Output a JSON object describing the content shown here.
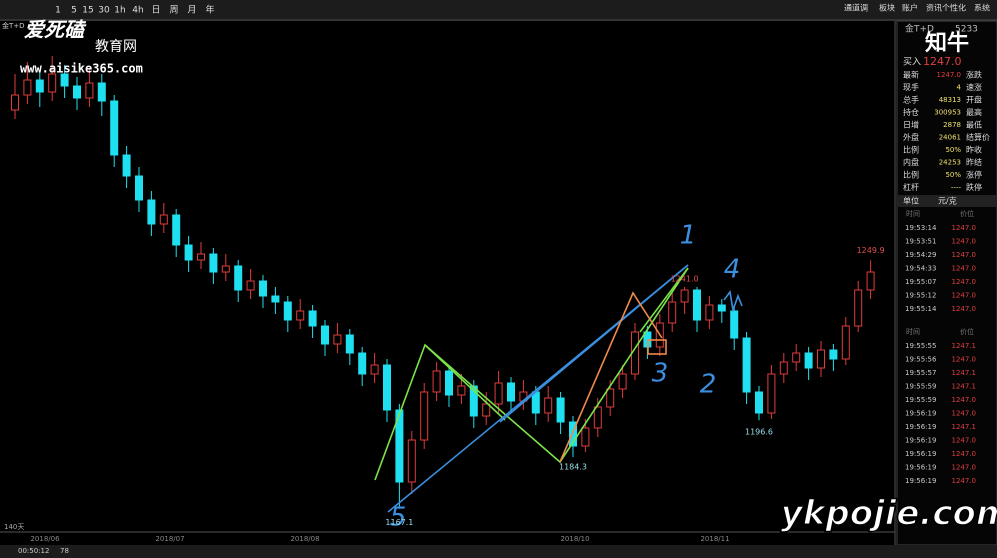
{
  "toolbar": {
    "periods": [
      "1",
      "5",
      "15",
      "30",
      "1h",
      "4h",
      "日",
      "周",
      "月",
      "年"
    ],
    "menu": [
      "通道调",
      "板块",
      "账户",
      "资讯",
      "个性化",
      "系统"
    ]
  },
  "watermark": {
    "brand": "爱死磕",
    "sub": "教育网",
    "url": "www.aisike365.com",
    "logo": "知牛",
    "corner": "ykpojie.com"
  },
  "chart": {
    "type": "candlestick",
    "symbol": "金T+D",
    "ylim": [
      1160,
      1330
    ],
    "candles": [
      [
        1300,
        1305,
        1312,
        1297
      ],
      [
        1305,
        1310,
        1316,
        1302
      ],
      [
        1310,
        1306,
        1313,
        1301
      ],
      [
        1306,
        1312,
        1318,
        1303
      ],
      [
        1312,
        1308,
        1315,
        1304
      ],
      [
        1308,
        1304,
        1311,
        1300
      ],
      [
        1304,
        1309,
        1314,
        1301
      ],
      [
        1309,
        1303,
        1312,
        1298
      ],
      [
        1303,
        1285,
        1305,
        1281
      ],
      [
        1285,
        1278,
        1288,
        1274
      ],
      [
        1278,
        1270,
        1281,
        1266
      ],
      [
        1270,
        1262,
        1273,
        1258
      ],
      [
        1262,
        1265,
        1269,
        1259
      ],
      [
        1265,
        1255,
        1267,
        1251
      ],
      [
        1255,
        1250,
        1258,
        1246
      ],
      [
        1250,
        1252,
        1256,
        1247
      ],
      [
        1252,
        1246,
        1254,
        1242
      ],
      [
        1246,
        1248,
        1252,
        1243
      ],
      [
        1248,
        1240,
        1250,
        1236
      ],
      [
        1240,
        1243,
        1247,
        1237
      ],
      [
        1243,
        1238,
        1245,
        1234
      ],
      [
        1238,
        1236,
        1241,
        1232
      ],
      [
        1236,
        1230,
        1238,
        1226
      ],
      [
        1230,
        1233,
        1237,
        1227
      ],
      [
        1233,
        1228,
        1235,
        1224
      ],
      [
        1228,
        1222,
        1230,
        1218
      ],
      [
        1222,
        1225,
        1229,
        1219
      ],
      [
        1225,
        1219,
        1227,
        1215
      ],
      [
        1219,
        1212,
        1221,
        1208
      ],
      [
        1212,
        1215,
        1219,
        1209
      ],
      [
        1215,
        1200,
        1217,
        1196
      ],
      [
        1200,
        1176,
        1202,
        1167.1
      ],
      [
        1176,
        1190,
        1193,
        1172
      ],
      [
        1190,
        1206,
        1209,
        1187
      ],
      [
        1206,
        1213,
        1216,
        1203
      ],
      [
        1213,
        1205,
        1215,
        1201
      ],
      [
        1205,
        1208,
        1212,
        1202
      ],
      [
        1208,
        1198,
        1210,
        1194
      ],
      [
        1198,
        1202,
        1206,
        1195
      ],
      [
        1202,
        1209,
        1213,
        1199
      ],
      [
        1209,
        1203,
        1211,
        1199
      ],
      [
        1203,
        1206,
        1210,
        1200
      ],
      [
        1206,
        1199,
        1208,
        1195
      ],
      [
        1199,
        1204,
        1208,
        1196
      ],
      [
        1204,
        1196,
        1206,
        1192
      ],
      [
        1196,
        1188,
        1198,
        1184.3
      ],
      [
        1188,
        1194,
        1197,
        1186
      ],
      [
        1194,
        1201,
        1204,
        1191
      ],
      [
        1201,
        1207,
        1210,
        1198
      ],
      [
        1207,
        1212,
        1215,
        1204
      ],
      [
        1212,
        1226,
        1229,
        1210
      ],
      [
        1226,
        1221,
        1228,
        1217
      ],
      [
        1221,
        1229,
        1232,
        1218
      ],
      [
        1229,
        1236,
        1239,
        1226
      ],
      [
        1236,
        1240,
        1241,
        1232
      ],
      [
        1240,
        1230,
        1241,
        1226
      ],
      [
        1230,
        1235,
        1238,
        1227
      ],
      [
        1235,
        1233,
        1237,
        1229
      ],
      [
        1233,
        1224,
        1235,
        1220
      ],
      [
        1224,
        1206,
        1226,
        1202
      ],
      [
        1206,
        1199,
        1208,
        1196.6
      ],
      [
        1199,
        1212,
        1215,
        1197
      ],
      [
        1212,
        1216,
        1219,
        1209
      ],
      [
        1216,
        1219,
        1222,
        1213
      ],
      [
        1219,
        1214,
        1221,
        1210
      ],
      [
        1214,
        1220,
        1223,
        1211
      ],
      [
        1220,
        1217,
        1222,
        1213
      ],
      [
        1217,
        1228,
        1231,
        1215
      ],
      [
        1228,
        1240,
        1243,
        1226
      ],
      [
        1240,
        1246,
        1249.9,
        1237
      ]
    ],
    "annotations": [
      "1167.1",
      "1184.3",
      "1196.6",
      "1241.0",
      "1249.9"
    ],
    "dates": [
      "2018/06",
      "2018/07",
      "2018/08",
      "2018/10",
      "2018/11"
    ],
    "span": "140天",
    "hand_marks": [
      "1",
      "2",
      "3",
      "4",
      "5"
    ]
  },
  "panel": {
    "symbol": "金T+D",
    "code": "5233",
    "buy_label": "买入",
    "buy_price": "1247.0",
    "quote_rows": [
      [
        "最新",
        "1247.0",
        "涨跌"
      ],
      [
        "现手",
        "4",
        "速涨"
      ],
      [
        "总手",
        "48313",
        "开盘"
      ],
      [
        "持仓",
        "300953",
        "最高"
      ],
      [
        "日增",
        "2878",
        "最低"
      ],
      [
        "外盘",
        "24061",
        "结算价"
      ],
      [
        "比例",
        "50%",
        "昨收"
      ],
      [
        "内盘",
        "24253",
        "昨结"
      ],
      [
        "比例",
        "50%",
        "涨停"
      ],
      [
        "杠杆",
        "----",
        "跌停"
      ]
    ],
    "unit_label": "单位",
    "unit": "元/克",
    "ticks_header": [
      "时间",
      "价位"
    ],
    "ticks_a": [
      [
        "19:53:14",
        "1247.0"
      ],
      [
        "19:53:51",
        "1247.0"
      ],
      [
        "19:54:29",
        "1247.0"
      ],
      [
        "19:54:33",
        "1247.0"
      ],
      [
        "19:55:07",
        "1247.0"
      ],
      [
        "19:55:12",
        "1247.0"
      ],
      [
        "19:55:14",
        "1247.0"
      ]
    ],
    "ticks_b": [
      [
        "19:55:55",
        "1247.1"
      ],
      [
        "19:55:56",
        "1247.0"
      ],
      [
        "19:55:57",
        "1247.1"
      ],
      [
        "19:55:59",
        "1247.1"
      ],
      [
        "19:55:59",
        "1247.0"
      ],
      [
        "19:56:19",
        "1247.0"
      ],
      [
        "19:56:19",
        "1247.1"
      ],
      [
        "19:56:19",
        "1247.0"
      ],
      [
        "19:56:19",
        "1247.0"
      ],
      [
        "19:56:19",
        "1247.0"
      ],
      [
        "19:56:19",
        "1247.0"
      ]
    ]
  },
  "status": {
    "clock": "00:50:12",
    "count": "78"
  }
}
